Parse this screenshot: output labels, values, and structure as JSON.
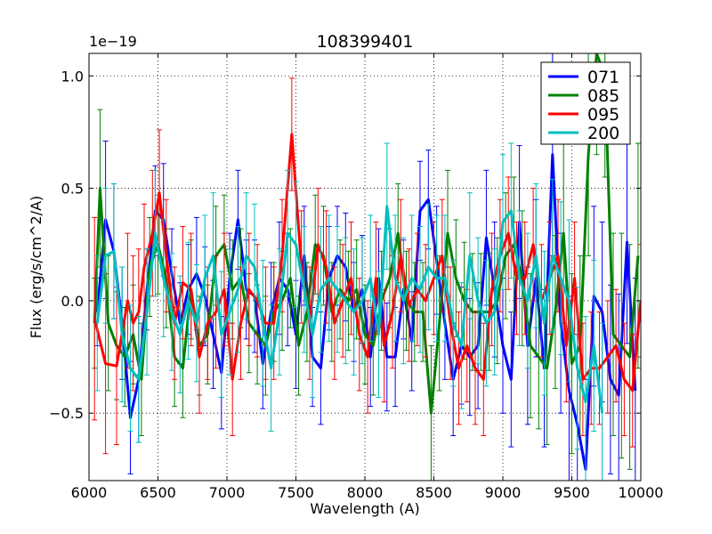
{
  "chart_data": {
    "type": "line",
    "title": "108399401",
    "xlabel": "Wavelength (A)",
    "ylabel": "Flux (erg/s/cm^2/A)",
    "offset_text": "1e−19",
    "xlim": [
      6000,
      10000
    ],
    "ylim": [
      -0.8,
      1.1
    ],
    "xticks": [
      6000,
      6500,
      7000,
      7500,
      8000,
      8500,
      9000,
      9500,
      10000
    ],
    "xtick_labels": [
      "6000",
      "6500",
      "7000",
      "7500",
      "8000",
      "8500",
      "9000",
      "9500",
      "10000"
    ],
    "yticks": [
      -0.5,
      0.0,
      0.5,
      1.0
    ],
    "ytick_labels": [
      "−0.5",
      "0.0",
      "0.5",
      "1.0"
    ],
    "grid": true,
    "legend_position": "top-right",
    "series": [
      {
        "name": "071",
        "color": "#0000ff",
        "x": [
          6060,
          6120,
          6180,
          6240,
          6300,
          6360,
          6420,
          6480,
          6540,
          6600,
          6660,
          6720,
          6780,
          6840,
          6900,
          6960,
          7020,
          7080,
          7140,
          7200,
          7260,
          7320,
          7380,
          7440,
          7500,
          7560,
          7620,
          7680,
          7740,
          7800,
          7860,
          7920,
          7980,
          8040,
          8100,
          8160,
          8220,
          8280,
          8340,
          8400,
          8460,
          8520,
          8580,
          8640,
          8700,
          8760,
          8820,
          8880,
          8940,
          9000,
          9060,
          9120,
          9180,
          9240,
          9300,
          9360,
          9420,
          9480,
          9540,
          9600,
          9660,
          9720,
          9780,
          9840,
          9900,
          9960
        ],
        "y": [
          -0.05,
          0.36,
          0.22,
          -0.1,
          -0.52,
          -0.35,
          0.05,
          0.4,
          0.36,
          0.12,
          -0.1,
          0.05,
          0.12,
          0.02,
          -0.15,
          -0.32,
          0.1,
          0.36,
          0.05,
          0.02,
          -0.28,
          -0.05,
          0.1,
          0.05,
          -0.15,
          0.2,
          -0.25,
          -0.3,
          0.1,
          0.2,
          0.15,
          -0.05,
          0.05,
          -0.25,
          0.1,
          -0.25,
          -0.25,
          0.05,
          -0.18,
          0.4,
          0.45,
          0.18,
          -0.1,
          -0.35,
          -0.2,
          -0.25,
          -0.2,
          0.28,
          0.05,
          -0.2,
          -0.35,
          0.35,
          -0.2,
          0.1,
          -0.3,
          0.65,
          -0.1,
          -0.4,
          -0.55,
          -0.75,
          0.02,
          -0.05,
          -0.35,
          -0.42,
          0.26,
          -0.4
        ],
        "errors": [
          0.15,
          0.35,
          0.3,
          0.25,
          0.25,
          0.28,
          0.18,
          0.2,
          0.25,
          0.2,
          0.18,
          0.2,
          0.25,
          0.22,
          0.24,
          0.25,
          0.2,
          0.22,
          0.22,
          0.25,
          0.2,
          0.22,
          0.25,
          0.25,
          0.24,
          0.22,
          0.22,
          0.25,
          0.23,
          0.22,
          0.24,
          0.22,
          0.24,
          0.22,
          0.22,
          0.24,
          0.22,
          0.22,
          0.22,
          0.22,
          0.22,
          0.24,
          0.25,
          0.25,
          0.26,
          0.26,
          0.28,
          0.3,
          0.3,
          0.3,
          0.3,
          0.34,
          0.35,
          0.35,
          0.35,
          0.45,
          0.4,
          0.42,
          0.4,
          0.4,
          0.4,
          0.4,
          0.42,
          0.45,
          0.45,
          0.5
        ]
      },
      {
        "name": "085",
        "color": "#008000",
        "x": [
          6040,
          6080,
          6140,
          6200,
          6260,
          6320,
          6380,
          6440,
          6500,
          6560,
          6620,
          6680,
          6740,
          6800,
          6860,
          6920,
          6980,
          7040,
          7100,
          7160,
          7220,
          7280,
          7340,
          7400,
          7460,
          7520,
          7580,
          7640,
          7700,
          7760,
          7820,
          7880,
          7940,
          8000,
          8060,
          8120,
          8180,
          8240,
          8300,
          8360,
          8420,
          8480,
          8540,
          8600,
          8660,
          8720,
          8780,
          8840,
          8900,
          8960,
          9020,
          9080,
          9140,
          9200,
          9260,
          9320,
          9380,
          9440,
          9500,
          9560,
          9620,
          9680,
          9740,
          9800,
          9860,
          9920,
          9980
        ],
        "y": [
          -0.1,
          0.5,
          -0.1,
          -0.2,
          -0.25,
          -0.15,
          -0.35,
          0.15,
          0.25,
          0.1,
          -0.25,
          -0.3,
          0.05,
          -0.2,
          -0.15,
          0.2,
          0.25,
          0.05,
          0.1,
          -0.1,
          -0.15,
          -0.2,
          -0.05,
          0.0,
          0.1,
          -0.2,
          -0.05,
          0.25,
          0.2,
          -0.05,
          0.05,
          0.0,
          0.05,
          -0.15,
          -0.2,
          0.0,
          0.1,
          0.3,
          0.0,
          -0.05,
          -0.05,
          -0.5,
          -0.1,
          0.3,
          0.1,
          0.0,
          -0.05,
          -0.05,
          -0.05,
          0.0,
          0.2,
          0.25,
          0.1,
          -0.2,
          -0.25,
          -0.3,
          -0.05,
          0.3,
          -0.28,
          -0.2,
          0.65,
          1.1,
          1.0,
          -0.15,
          -0.2,
          -0.25,
          0.2
        ],
        "errors": [
          0.2,
          0.35,
          0.3,
          0.24,
          0.22,
          0.22,
          0.25,
          0.22,
          0.22,
          0.22,
          0.22,
          0.22,
          0.22,
          0.22,
          0.22,
          0.22,
          0.22,
          0.22,
          0.22,
          0.22,
          0.22,
          0.22,
          0.22,
          0.22,
          0.22,
          0.22,
          0.22,
          0.22,
          0.22,
          0.22,
          0.22,
          0.22,
          0.22,
          0.22,
          0.22,
          0.22,
          0.22,
          0.22,
          0.22,
          0.22,
          0.22,
          0.3,
          0.3,
          0.28,
          0.26,
          0.26,
          0.26,
          0.26,
          0.26,
          0.28,
          0.28,
          0.3,
          0.3,
          0.32,
          0.32,
          0.34,
          0.34,
          0.4,
          0.4,
          0.4,
          0.45,
          0.45,
          0.45,
          0.45,
          0.5,
          0.5,
          0.5
        ]
      },
      {
        "name": "095",
        "color": "#ff0000",
        "x": [
          6040,
          6120,
          6200,
          6280,
          6320,
          6360,
          6400,
          6460,
          6510,
          6560,
          6620,
          6680,
          6740,
          6800,
          6860,
          6920,
          6980,
          7040,
          7100,
          7160,
          7220,
          7280,
          7340,
          7400,
          7470,
          7540,
          7600,
          7660,
          7720,
          7780,
          7840,
          7900,
          7960,
          8020,
          8080,
          8140,
          8200,
          8260,
          8320,
          8380,
          8440,
          8500,
          8560,
          8620,
          8680,
          8740,
          8800,
          8860,
          8920,
          8980,
          9040,
          9100,
          9160,
          9220,
          9280,
          9340,
          9400,
          9460,
          9520,
          9580,
          9640,
          9700,
          9760,
          9820,
          9880,
          9940,
          10000
        ],
        "y": [
          -0.08,
          -0.28,
          -0.29,
          0.0,
          -0.1,
          -0.05,
          0.15,
          0.3,
          0.48,
          0.2,
          -0.1,
          0.08,
          0.05,
          -0.25,
          -0.1,
          -0.05,
          0.05,
          -0.35,
          -0.1,
          0.05,
          0.0,
          -0.1,
          -0.1,
          0.2,
          0.74,
          0.15,
          -0.1,
          0.25,
          0.15,
          -0.1,
          0.0,
          0.1,
          -0.15,
          -0.25,
          0.1,
          -0.2,
          -0.05,
          0.2,
          -0.02,
          0.05,
          0.0,
          0.1,
          0.2,
          -0.1,
          -0.3,
          -0.2,
          -0.3,
          -0.35,
          0.05,
          0.2,
          0.3,
          0.1,
          0.1,
          0.25,
          0.0,
          0.1,
          0.2,
          -0.2,
          0.1,
          -0.35,
          -0.3,
          -0.3,
          -0.25,
          -0.2,
          -0.35,
          -0.4,
          0.0
        ],
        "errors": [
          0.45,
          0.4,
          0.35,
          0.3,
          0.3,
          0.28,
          0.28,
          0.28,
          0.28,
          0.25,
          0.25,
          0.25,
          0.25,
          0.25,
          0.25,
          0.25,
          0.25,
          0.25,
          0.25,
          0.25,
          0.25,
          0.25,
          0.25,
          0.25,
          0.25,
          0.25,
          0.25,
          0.25,
          0.25,
          0.25,
          0.25,
          0.25,
          0.25,
          0.25,
          0.25,
          0.25,
          0.25,
          0.25,
          0.25,
          0.25,
          0.25,
          0.25,
          0.25,
          0.25,
          0.25,
          0.25,
          0.25,
          0.25,
          0.25,
          0.25,
          0.25,
          0.25,
          0.25,
          0.25,
          0.25,
          0.25,
          0.25,
          0.25,
          0.25,
          0.25,
          0.25,
          0.25,
          0.25,
          0.25,
          0.25,
          0.25,
          0.25
        ]
      },
      {
        "name": "200",
        "color": "#00bfbf",
        "x": [
          6060,
          6120,
          6180,
          6240,
          6300,
          6360,
          6420,
          6480,
          6540,
          6600,
          6660,
          6720,
          6780,
          6840,
          6900,
          6960,
          7020,
          7080,
          7140,
          7200,
          7260,
          7320,
          7380,
          7440,
          7500,
          7560,
          7620,
          7680,
          7740,
          7800,
          7860,
          7920,
          7980,
          8040,
          8100,
          8160,
          8220,
          8280,
          8340,
          8400,
          8460,
          8520,
          8580,
          8640,
          8700,
          8760,
          8820,
          8880,
          8940,
          9000,
          9060,
          9120,
          9180,
          9240,
          9300,
          9360,
          9420,
          9480,
          9540,
          9600,
          9660,
          9720
        ],
        "y": [
          -0.1,
          0.2,
          0.22,
          -0.15,
          -0.3,
          -0.35,
          -0.05,
          0.3,
          0.1,
          -0.05,
          -0.15,
          0.0,
          -0.1,
          0.1,
          0.2,
          -0.15,
          -0.05,
          0.05,
          0.2,
          0.15,
          -0.1,
          -0.3,
          -0.05,
          0.3,
          0.25,
          0.05,
          -0.15,
          0.05,
          0.1,
          0.05,
          0.0,
          -0.05,
          0.0,
          0.1,
          -0.15,
          0.42,
          0.1,
          0.0,
          0.1,
          0.05,
          0.15,
          0.1,
          0.1,
          -0.1,
          -0.2,
          0.2,
          0.0,
          -0.1,
          -0.05,
          0.35,
          0.4,
          0.1,
          0.0,
          0.2,
          -0.1,
          0.2,
          0.1,
          0.0,
          -0.3,
          -0.45,
          -0.2,
          -0.5
        ],
        "errors": [
          0.3,
          0.3,
          0.3,
          0.3,
          0.28,
          0.28,
          0.28,
          0.28,
          0.26,
          0.26,
          0.26,
          0.26,
          0.26,
          0.28,
          0.28,
          0.28,
          0.28,
          0.28,
          0.28,
          0.28,
          0.28,
          0.28,
          0.28,
          0.28,
          0.28,
          0.28,
          0.28,
          0.28,
          0.28,
          0.28,
          0.28,
          0.28,
          0.28,
          0.28,
          0.28,
          0.28,
          0.28,
          0.28,
          0.28,
          0.28,
          0.28,
          0.28,
          0.28,
          0.28,
          0.28,
          0.28,
          0.28,
          0.28,
          0.28,
          0.3,
          0.3,
          0.3,
          0.3,
          0.32,
          0.32,
          0.34,
          0.34,
          0.36,
          0.36,
          0.38,
          0.38,
          0.4
        ]
      }
    ]
  }
}
